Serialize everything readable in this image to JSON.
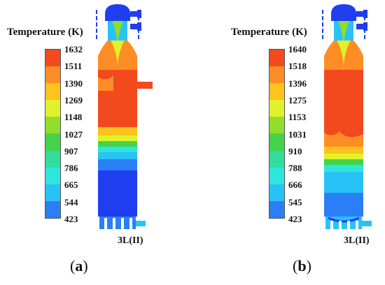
{
  "colors": {
    "scale": [
      "#1f3ef0",
      "#2b7ff6",
      "#29c2f6",
      "#2de6dc",
      "#33dd9e",
      "#46d24a",
      "#93dd2a",
      "#dff22a",
      "#fec31c",
      "#ff8d25",
      "#f24a1e"
    ]
  },
  "panels": [
    {
      "id": "a",
      "legend_title": "Temperature (K)",
      "tick_labels": [
        "1632",
        "1511",
        "1390",
        "1269",
        "1148",
        "1027",
        "907",
        "786",
        "665",
        "544",
        "423"
      ],
      "device_label": "3L(II)",
      "letter": "a"
    },
    {
      "id": "b",
      "legend_title": "Temperature (K)",
      "tick_labels": [
        "1640",
        "1518",
        "1396",
        "1275",
        "1153",
        "1031",
        "910",
        "788",
        "666",
        "545",
        "423"
      ],
      "device_label": "3L(II)",
      "letter": "b"
    }
  ]
}
